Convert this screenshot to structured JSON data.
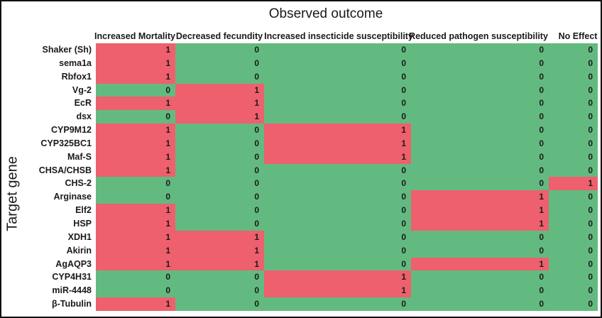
{
  "title": "Observed outcome",
  "ylabel": "Target gene",
  "colors": {
    "present": "#ee606d",
    "absent": "#63ba80",
    "border": "#111111",
    "text": "#1a1a1a"
  },
  "chart_data": {
    "type": "heatmap",
    "title": "Observed outcome",
    "ylabel": "Target gene",
    "value_encoding": {
      "1": "red",
      "0": "green"
    },
    "columns": [
      "Increased Mortality",
      "Decreased fecundity",
      "Increased insecticide susceptibility",
      "Reduced pathogen susceptibility",
      "No Effect"
    ],
    "rows": [
      "Shaker (Sh)",
      "sema1a",
      "Rbfox1",
      "Vg-2",
      "EcR",
      "dsx",
      "CYP9M12",
      "CYP325BC1",
      "Maf-S",
      "CHSA/CHSB",
      "CHS-2",
      "Arginase",
      "Elf2",
      "HSP",
      "XDH1",
      "Akirin",
      "AgAQP3",
      "CYP4H31",
      "miR-4448",
      "β-Tubulin"
    ],
    "values": [
      [
        1,
        0,
        0,
        0,
        0
      ],
      [
        1,
        0,
        0,
        0,
        0
      ],
      [
        1,
        0,
        0,
        0,
        0
      ],
      [
        0,
        1,
        0,
        0,
        0
      ],
      [
        1,
        1,
        0,
        0,
        0
      ],
      [
        0,
        1,
        0,
        0,
        0
      ],
      [
        1,
        0,
        1,
        0,
        0
      ],
      [
        1,
        0,
        1,
        0,
        0
      ],
      [
        1,
        0,
        1,
        0,
        0
      ],
      [
        1,
        0,
        0,
        0,
        0
      ],
      [
        0,
        0,
        0,
        0,
        1
      ],
      [
        0,
        0,
        0,
        1,
        0
      ],
      [
        1,
        0,
        0,
        1,
        0
      ],
      [
        1,
        0,
        0,
        1,
        0
      ],
      [
        1,
        1,
        0,
        0,
        0
      ],
      [
        1,
        1,
        0,
        0,
        0
      ],
      [
        1,
        1,
        0,
        1,
        0
      ],
      [
        0,
        0,
        1,
        0,
        0
      ],
      [
        0,
        0,
        1,
        0,
        0
      ],
      [
        1,
        0,
        0,
        0,
        0
      ]
    ]
  }
}
